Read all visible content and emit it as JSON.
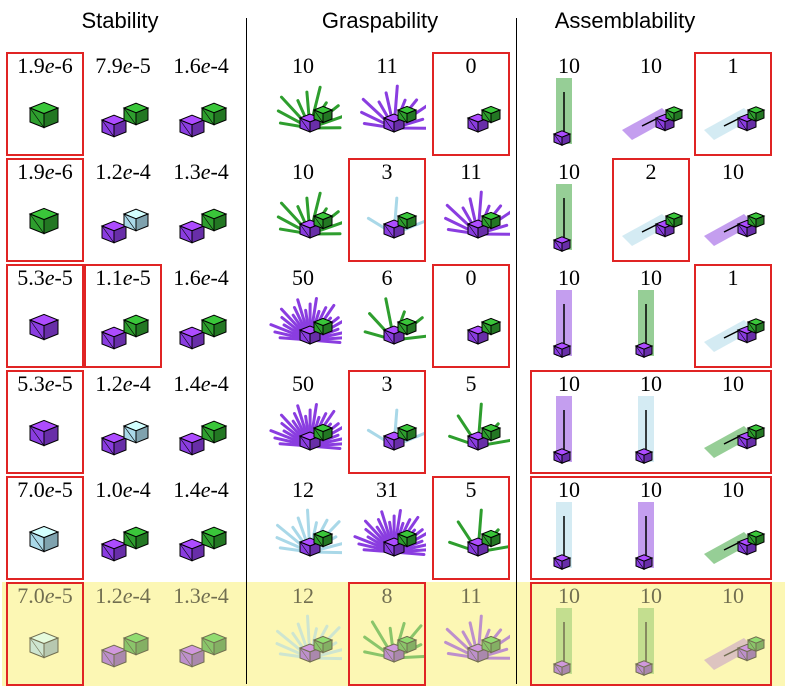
{
  "headers": [
    "Stability",
    "Graspability",
    "Assemblability"
  ],
  "colors": {
    "green": "#2e9e2e",
    "purple": "#8a3de0",
    "lightblue": "#a9d8e8",
    "red": "#e02424",
    "highlight": "#fbf6a7"
  },
  "rows": [
    {
      "stability": [
        "1.9e-6",
        "7.9e-5",
        "1.6e-4"
      ],
      "graspability": [
        "10",
        "11",
        "0"
      ],
      "assemblability": [
        "10",
        "10",
        "1"
      ]
    },
    {
      "stability": [
        "1.9e-6",
        "1.2e-4",
        "1.3e-4"
      ],
      "graspability": [
        "10",
        "3",
        "11"
      ],
      "assemblability": [
        "10",
        "2",
        "10"
      ]
    },
    {
      "stability": [
        "5.3e-5",
        "1.1e-5",
        "1.6e-4"
      ],
      "graspability": [
        "50",
        "6",
        "0"
      ],
      "assemblability": [
        "10",
        "10",
        "1"
      ]
    },
    {
      "stability": [
        "5.3e-5",
        "1.2e-4",
        "1.4e-4"
      ],
      "graspability": [
        "50",
        "3",
        "5"
      ],
      "assemblability": [
        "10",
        "10",
        "10"
      ]
    },
    {
      "stability": [
        "7.0e-5",
        "1.0e-4",
        "1.4e-4"
      ],
      "graspability": [
        "12",
        "31",
        "5"
      ],
      "assemblability": [
        "10",
        "10",
        "10"
      ]
    },
    {
      "stability": [
        "7.0e-5",
        "1.2e-4",
        "1.3e-4"
      ],
      "graspability": [
        "12",
        "8",
        "11"
      ],
      "assemblability": [
        "10",
        "10",
        "10"
      ]
    }
  ]
}
